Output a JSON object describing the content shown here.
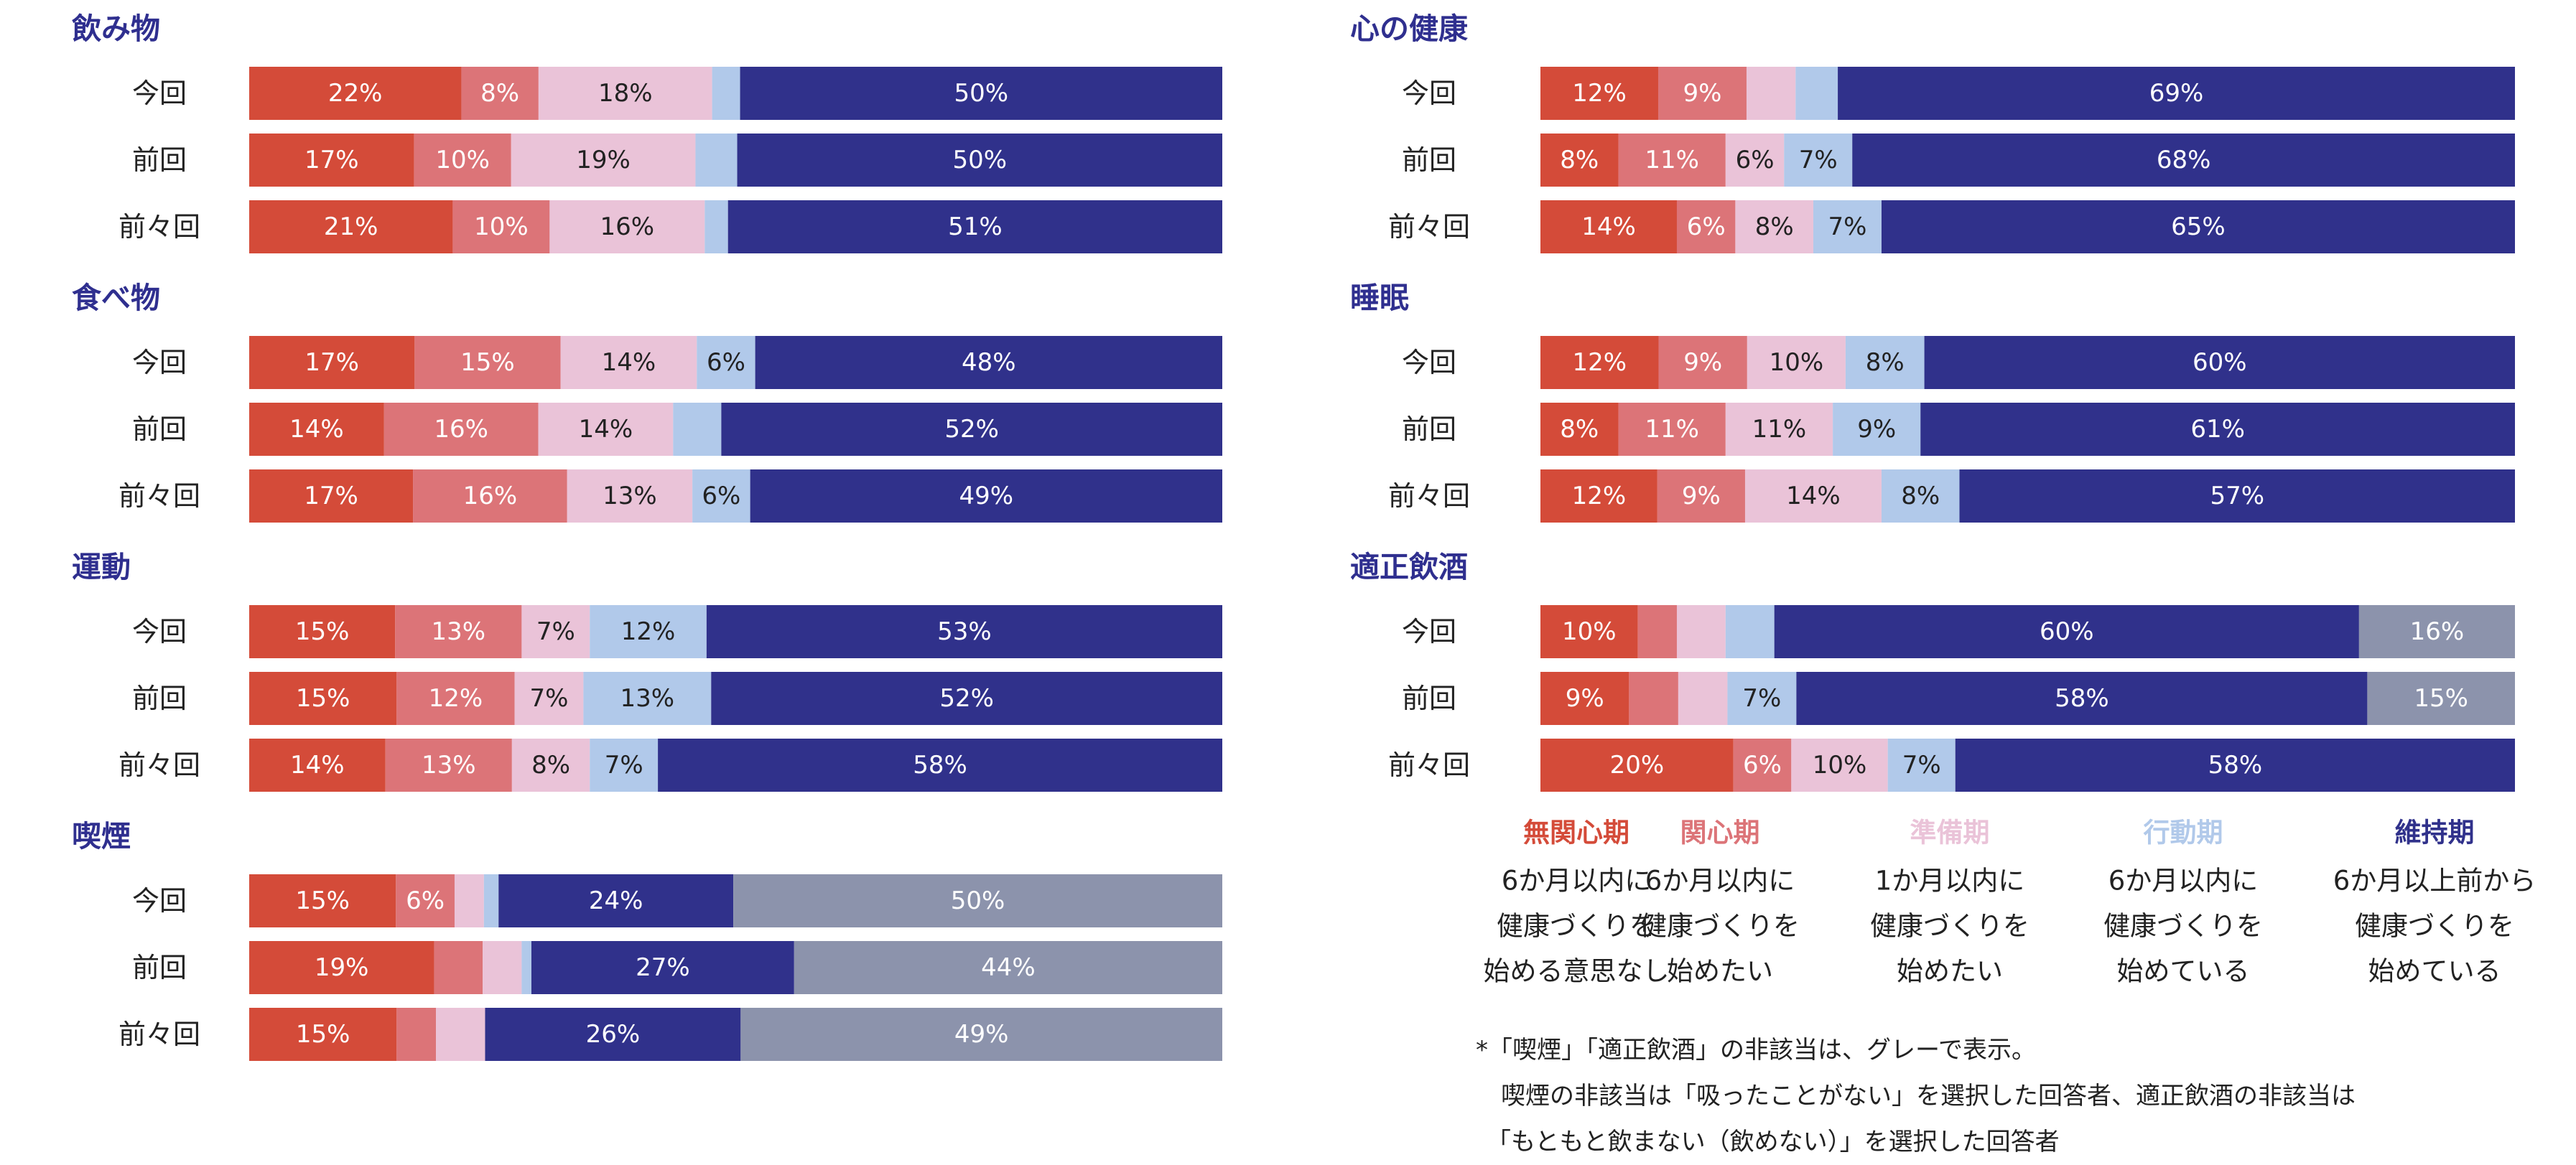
{
  "colors": {
    "cat1": "#d44b39",
    "cat2": "#dc7478",
    "cat3": "#eac3d8",
    "cat4": "#b1c9ea",
    "cat5": "#30318b",
    "na": "#8c93ac",
    "title": "#2f2f8f"
  },
  "chart_data": [
    {
      "type": "bar",
      "orientation": "horizontal-stacked-100",
      "title": "飲み物",
      "categories": [
        "今回",
        "前回",
        "前々回"
      ],
      "series": [
        {
          "name": "無関心期",
          "values": [
            22,
            17,
            21
          ],
          "labels": [
            "22%",
            "17%",
            "21%"
          ]
        },
        {
          "name": "関心期",
          "values": [
            8,
            10,
            10
          ],
          "labels": [
            "8%",
            "10%",
            "10%"
          ]
        },
        {
          "name": "準備期",
          "values": [
            18,
            19,
            16
          ],
          "labels": [
            "18%",
            "19%",
            "16%"
          ]
        },
        {
          "name": "行動期",
          "values": [
            2.9,
            4.3,
            2.4
          ],
          "labels": [
            "",
            "",
            ""
          ]
        },
        {
          "name": "維持期",
          "values": [
            50,
            50,
            51
          ],
          "labels": [
            "50%",
            "50%",
            "51%"
          ]
        }
      ]
    },
    {
      "type": "bar",
      "orientation": "horizontal-stacked-100",
      "title": "食べ物",
      "categories": [
        "今回",
        "前回",
        "前々回"
      ],
      "series": [
        {
          "name": "無関心期",
          "values": [
            17,
            14,
            17
          ],
          "labels": [
            "17%",
            "14%",
            "17%"
          ]
        },
        {
          "name": "関心期",
          "values": [
            15,
            16,
            16
          ],
          "labels": [
            "15%",
            "16%",
            "16%"
          ]
        },
        {
          "name": "準備期",
          "values": [
            14,
            14,
            13
          ],
          "labels": [
            "14%",
            "14%",
            "13%"
          ]
        },
        {
          "name": "行動期",
          "values": [
            6,
            5,
            6
          ],
          "labels": [
            "6%",
            "",
            "6%"
          ]
        },
        {
          "name": "維持期",
          "values": [
            48,
            52,
            49
          ],
          "labels": [
            "48%",
            "52%",
            "49%"
          ]
        }
      ]
    },
    {
      "type": "bar",
      "orientation": "horizontal-stacked-100",
      "title": "運動",
      "categories": [
        "今回",
        "前回",
        "前々回"
      ],
      "series": [
        {
          "name": "無関心期",
          "values": [
            15,
            15,
            14
          ],
          "labels": [
            "15%",
            "15%",
            "14%"
          ]
        },
        {
          "name": "関心期",
          "values": [
            13,
            12,
            13
          ],
          "labels": [
            "13%",
            "12%",
            "13%"
          ]
        },
        {
          "name": "準備期",
          "values": [
            7,
            7,
            8
          ],
          "labels": [
            "7%",
            "7%",
            "8%"
          ]
        },
        {
          "name": "行動期",
          "values": [
            12,
            13,
            7
          ],
          "labels": [
            "12%",
            "13%",
            "7%"
          ]
        },
        {
          "name": "維持期",
          "values": [
            53,
            52,
            58
          ],
          "labels": [
            "53%",
            "52%",
            "58%"
          ]
        }
      ]
    },
    {
      "type": "bar",
      "orientation": "horizontal-stacked-100",
      "title": "喫煙",
      "categories": [
        "今回",
        "前回",
        "前々回"
      ],
      "series": [
        {
          "name": "無関心期",
          "values": [
            15,
            19,
            15
          ],
          "labels": [
            "15%",
            "19%",
            "15%"
          ]
        },
        {
          "name": "関心期",
          "values": [
            6,
            5,
            4
          ],
          "labels": [
            "6%",
            "",
            ""
          ]
        },
        {
          "name": "準備期",
          "values": [
            3,
            4,
            5
          ],
          "labels": [
            "",
            "",
            ""
          ]
        },
        {
          "name": "行動期",
          "values": [
            1.5,
            1,
            0
          ],
          "labels": [
            "",
            "",
            ""
          ]
        },
        {
          "name": "維持期",
          "values": [
            24,
            27,
            26
          ],
          "labels": [
            "24%",
            "27%",
            "26%"
          ]
        },
        {
          "name": "非該当",
          "values": [
            50,
            44,
            49
          ],
          "labels": [
            "50%",
            "44%",
            "49%"
          ]
        }
      ]
    },
    {
      "type": "bar",
      "orientation": "horizontal-stacked-100",
      "title": "心の健康",
      "categories": [
        "今回",
        "前回",
        "前々回"
      ],
      "series": [
        {
          "name": "無関心期",
          "values": [
            12,
            8,
            14
          ],
          "labels": [
            "12%",
            "8%",
            "14%"
          ]
        },
        {
          "name": "関心期",
          "values": [
            9,
            11,
            6
          ],
          "labels": [
            "9%",
            "11%",
            "6%"
          ]
        },
        {
          "name": "準備期",
          "values": [
            5,
            6,
            8
          ],
          "labels": [
            "",
            "6%",
            "8%"
          ]
        },
        {
          "name": "行動期",
          "values": [
            4.3,
            7,
            7
          ],
          "labels": [
            "",
            "7%",
            "7%"
          ]
        },
        {
          "name": "維持期",
          "values": [
            69,
            68,
            65
          ],
          "labels": [
            "69%",
            "68%",
            "65%"
          ]
        }
      ]
    },
    {
      "type": "bar",
      "orientation": "horizontal-stacked-100",
      "title": "睡眠",
      "categories": [
        "今回",
        "前回",
        "前々回"
      ],
      "series": [
        {
          "name": "無関心期",
          "values": [
            12,
            8,
            12
          ],
          "labels": [
            "12%",
            "8%",
            "12%"
          ]
        },
        {
          "name": "関心期",
          "values": [
            9,
            11,
            9
          ],
          "labels": [
            "9%",
            "11%",
            "9%"
          ]
        },
        {
          "name": "準備期",
          "values": [
            10,
            11,
            14
          ],
          "labels": [
            "10%",
            "11%",
            "14%"
          ]
        },
        {
          "name": "行動期",
          "values": [
            8,
            9,
            8
          ],
          "labels": [
            "8%",
            "9%",
            "8%"
          ]
        },
        {
          "name": "維持期",
          "values": [
            60,
            61,
            57
          ],
          "labels": [
            "60%",
            "61%",
            "57%"
          ]
        }
      ]
    },
    {
      "type": "bar",
      "orientation": "horizontal-stacked-100",
      "title": "適正飲酒",
      "categories": [
        "今回",
        "前回",
        "前々回"
      ],
      "series": [
        {
          "name": "無関心期",
          "values": [
            10,
            9,
            20
          ],
          "labels": [
            "10%",
            "9%",
            "20%"
          ]
        },
        {
          "name": "関心期",
          "values": [
            4,
            5,
            6
          ],
          "labels": [
            "",
            "",
            "6%"
          ]
        },
        {
          "name": "準備期",
          "values": [
            5,
            5,
            10
          ],
          "labels": [
            "",
            "",
            "10%"
          ]
        },
        {
          "name": "行動期",
          "values": [
            5,
            7,
            7
          ],
          "labels": [
            "",
            "7%",
            "7%"
          ]
        },
        {
          "name": "維持期",
          "values": [
            60,
            58,
            58
          ],
          "labels": [
            "60%",
            "58%",
            "58%"
          ]
        },
        {
          "name": "非該当",
          "values": [
            16,
            15,
            0
          ],
          "labels": [
            "16%",
            "15%",
            ""
          ]
        }
      ]
    }
  ],
  "legend": [
    {
      "name": "無関心期",
      "lines": [
        "6か月以内に",
        "健康づくりを",
        "始める意思なし"
      ]
    },
    {
      "name": "関心期",
      "lines": [
        "6か月以内に",
        "健康づくりを",
        "始めたい"
      ]
    },
    {
      "name": "準備期",
      "lines": [
        "1か月以内に",
        "健康づくりを",
        "始めたい"
      ]
    },
    {
      "name": "行動期",
      "lines": [
        "6か月以内に",
        "健康づくりを",
        "始めている"
      ]
    },
    {
      "name": "維持期",
      "lines": [
        "6か月以上前から",
        "健康づくりを",
        "始めている"
      ]
    }
  ],
  "note": {
    "line1": "*「喫煙」「適正飲酒」の非該当は、グレーで表示。",
    "line2": "喫煙の非該当は「吸ったことがない」を選択した回答者、適正飲酒の非該当は",
    "line3": "「もともと飲まない（飲めない）」を選択した回答者"
  }
}
